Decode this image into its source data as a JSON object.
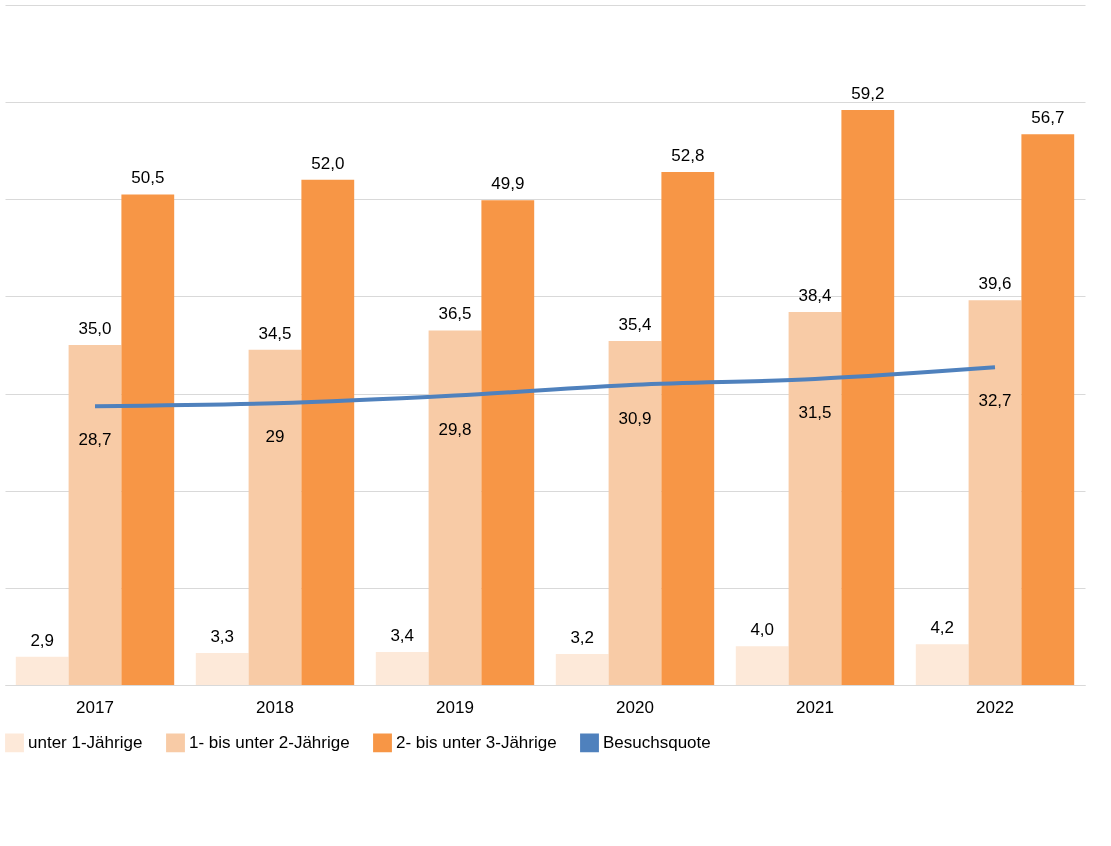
{
  "chart_data": {
    "type": "bar",
    "categories": [
      "2017",
      "2018",
      "2019",
      "2020",
      "2021",
      "2022"
    ],
    "series": [
      {
        "name": "unter 1-Jährige",
        "color": "#fde9d9",
        "values": [
          2.9,
          3.3,
          3.4,
          3.2,
          4.0,
          4.2
        ],
        "value_labels": [
          "2,9",
          "3,3",
          "3,4",
          "3,2",
          "4,0",
          "4,2"
        ]
      },
      {
        "name": "1- bis unter 2-Jährige",
        "color": "#f8cba6",
        "values": [
          35.0,
          34.5,
          36.5,
          35.4,
          38.4,
          39.6
        ],
        "value_labels": [
          "35,0",
          "34,5",
          "36,5",
          "35,4",
          "38,4",
          "39,6"
        ]
      },
      {
        "name": "2- bis unter 3-Jährige",
        "color": "#f79646",
        "values": [
          50.5,
          52.0,
          49.9,
          52.8,
          59.2,
          56.7
        ],
        "value_labels": [
          "50,5",
          "52,0",
          "49,9",
          "52,8",
          "59,2",
          "56,7"
        ]
      },
      {
        "name": "Besuchsquote",
        "type": "line",
        "color": "#4f81bd",
        "values": [
          28.7,
          29,
          29.8,
          30.9,
          31.5,
          32.7
        ],
        "value_labels": [
          "28,7",
          "29",
          "29,8",
          "30,9",
          "31,5",
          "32,7"
        ]
      }
    ],
    "ylim": [
      0,
      70
    ],
    "yticks": [
      {
        "value": 0,
        "label": null
      },
      {
        "value": 10,
        "label": null
      },
      {
        "value": 20,
        "label": null
      },
      {
        "value": 30,
        "label": null
      },
      {
        "value": 40,
        "label": null
      },
      {
        "value": 50,
        "label": null
      },
      {
        "value": 60,
        "label": null
      },
      {
        "value": 70,
        "label": null
      }
    ],
    "tick_labels": "x",
    "grid": "y",
    "legend": "bottom",
    "marker": "none",
    "line_style": "solid"
  }
}
